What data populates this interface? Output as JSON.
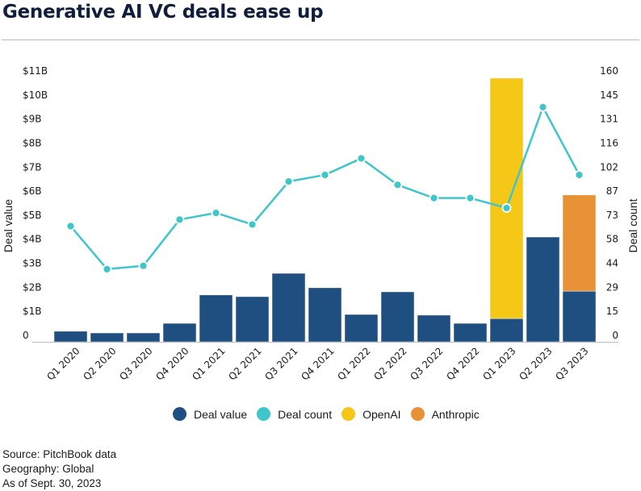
{
  "header": {
    "title": "Generative AI VC deals ease up"
  },
  "legend": [
    {
      "label": "Deal value",
      "color": "#1f4e80"
    },
    {
      "label": "Deal count",
      "color": "#3ec6cb"
    },
    {
      "label": "OpenAI",
      "color": "#f5c716"
    },
    {
      "label": "Anthropic",
      "color": "#e99136"
    }
  ],
  "footer": {
    "source": "Source: PitchBook data",
    "geography": "Geography: Global",
    "as_of": "As of Sept. 30, 2023"
  },
  "chart_data": {
    "type": "bar",
    "title": "Generative AI VC deals ease up",
    "categories": [
      "Q1 2020",
      "Q2 2020",
      "Q3 2020",
      "Q4 2020",
      "Q1 2021",
      "Q2 2021",
      "Q3 2021",
      "Q4 2021",
      "Q1 2022",
      "Q2 2022",
      "Q3 2022",
      "Q4 2022",
      "Q1 2023",
      "Q2 2023",
      "Q3 2023"
    ],
    "series": [
      {
        "name": "Deal value",
        "type": "bar",
        "axis": "left",
        "stack": "value",
        "color": "#1f4e80",
        "values": [
          0.44,
          0.37,
          0.37,
          0.77,
          1.95,
          1.88,
          2.85,
          2.25,
          1.14,
          2.08,
          1.11,
          0.77,
          0.97,
          4.36,
          2.11
        ]
      },
      {
        "name": "OpenAI",
        "type": "bar",
        "axis": "left",
        "stack": "value",
        "color": "#f5c716",
        "values": [
          0,
          0,
          0,
          0,
          0,
          0,
          0,
          0,
          0,
          0,
          0,
          0,
          10.0,
          0,
          0
        ]
      },
      {
        "name": "Anthropic",
        "type": "bar",
        "axis": "left",
        "stack": "value",
        "color": "#e99136",
        "values": [
          0,
          0,
          0,
          0,
          0,
          0,
          0,
          0,
          0,
          0,
          0,
          0,
          0,
          0,
          4.0
        ]
      },
      {
        "name": "Deal count",
        "type": "line",
        "axis": "right",
        "color": "#3ec6cb",
        "values": [
          70,
          44,
          46,
          74,
          78,
          71,
          97,
          101,
          111,
          95,
          87,
          87,
          81,
          142,
          101
        ]
      }
    ],
    "ylabel": "Deal value",
    "y2label": "Deal count",
    "xlabel": "",
    "ylim": [
      0,
      11
    ],
    "y2lim": [
      0,
      160
    ],
    "yticks": [
      "0",
      "$1B",
      "$2B",
      "$3B",
      "$4B",
      "$5B",
      "$6B",
      "$7B",
      "$8B",
      "$9B",
      "$10B",
      "$11B"
    ],
    "y2ticks": [
      "0",
      "15",
      "29",
      "44",
      "58",
      "73",
      "87",
      "102",
      "116",
      "131",
      "145",
      "160"
    ],
    "grid": false,
    "legend_position": "bottom"
  }
}
